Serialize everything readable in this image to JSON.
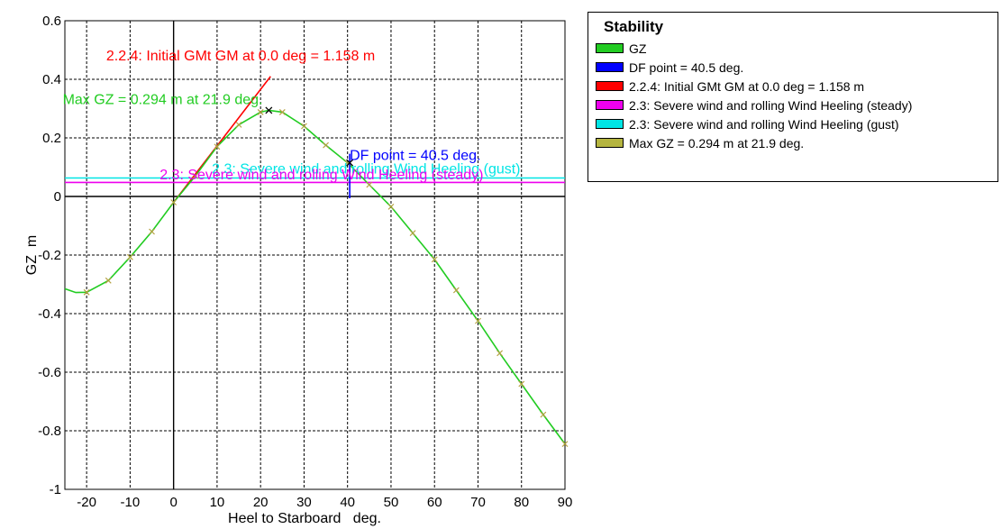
{
  "chart_data": {
    "type": "line",
    "xlabel": "Heel to Starboard   deg.",
    "ylabel": "GZ  m",
    "xlim": [
      -25,
      90
    ],
    "ylim": [
      -1,
      0.6
    ],
    "grid": true,
    "legend_position": "top-right",
    "x_ticks": [
      "-20",
      "-10",
      "0",
      "10",
      "20",
      "30",
      "40",
      "50",
      "60",
      "70",
      "80",
      "90"
    ],
    "y_ticks": [
      "0.6",
      "0.4",
      "0.2",
      "0",
      "-0.2",
      "-0.4",
      "-0.6",
      "-0.8",
      "-1"
    ],
    "series": [
      {
        "name": "GZ",
        "color": "#22cc22",
        "points": [
          [
            -25,
            -0.315
          ],
          [
            -22.5,
            -0.328
          ],
          [
            -20,
            -0.327
          ],
          [
            -15,
            -0.287
          ],
          [
            -10,
            -0.207
          ],
          [
            -5,
            -0.12
          ],
          [
            0,
            -0.02
          ],
          [
            5,
            0.07
          ],
          [
            10,
            0.17
          ],
          [
            15,
            0.245
          ],
          [
            20,
            0.288
          ],
          [
            21.9,
            0.294
          ],
          [
            25,
            0.288
          ],
          [
            30,
            0.24
          ],
          [
            35,
            0.175
          ],
          [
            40,
            0.115
          ],
          [
            45,
            0.04
          ],
          [
            50,
            -0.035
          ],
          [
            55,
            -0.125
          ],
          [
            60,
            -0.215
          ],
          [
            65,
            -0.32
          ],
          [
            70,
            -0.425
          ],
          [
            75,
            -0.535
          ],
          [
            80,
            -0.64
          ],
          [
            85,
            -0.745
          ],
          [
            90,
            -0.845
          ]
        ],
        "markers_x": [
          -20,
          -15,
          -10,
          -5,
          0,
          5,
          10,
          15,
          20,
          25,
          30,
          35,
          40,
          45,
          50,
          55,
          60,
          65,
          70,
          75,
          80,
          85,
          90
        ]
      },
      {
        "name": "2.2.4: Initial GMt GM at 0.0 deg = 1.158 m",
        "color": "#ff0000",
        "points": [
          [
            0,
            -0.02
          ],
          [
            22.3,
            0.41
          ]
        ]
      },
      {
        "name": "2.3: Severe wind and rolling Wind Heeling (gust)",
        "color": "#00e5e5",
        "points": [
          [
            -25,
            0.063
          ],
          [
            90,
            0.063
          ]
        ]
      },
      {
        "name": "2.3: Severe wind and rolling Wind Heeling (steady)",
        "color": "#ee00ee",
        "points": [
          [
            -25,
            0.048
          ],
          [
            90,
            0.048
          ]
        ]
      }
    ],
    "df_point": {
      "x": 40.5,
      "y": 0.115,
      "color": "#0000ff"
    },
    "max_gz": {
      "x": 21.9,
      "y": 0.294
    },
    "annotations": [
      {
        "text": "2.2.4: Initial GMt GM at 0.0 deg = 1.158 m",
        "x": -15.5,
        "y": 0.465,
        "color": "#ff0000"
      },
      {
        "text": "Max GZ = 0.294 m at 21.9 deg.",
        "x": -25.5,
        "y": 0.315,
        "color": "#22cc22"
      },
      {
        "text": "DF point = 40.5 deg.",
        "x": 40.5,
        "y": 0.125,
        "color": "#0000ff"
      },
      {
        "text": "2.3: Severe wind and rolling Wind Heeling (gust)",
        "x": 8.8,
        "y": 0.078,
        "color": "#00e5e5"
      },
      {
        "text": "2.3: Severe wind and rolling Wind Heeling (steady)",
        "x": -3.2,
        "y": 0.058,
        "color": "#ee00ee"
      }
    ]
  },
  "legend": {
    "title": "Stability",
    "items": [
      {
        "label": "GZ",
        "color": "#22cc22"
      },
      {
        "label": "DF point = 40.5 deg.",
        "color": "#0000ff"
      },
      {
        "label": "2.2.4: Initial GMt GM at 0.0 deg = 1.158 m",
        "color": "#ff0000"
      },
      {
        "label": "2.3: Severe wind and rolling Wind Heeling (steady)",
        "color": "#ee00ee"
      },
      {
        "label": "2.3: Severe wind and rolling Wind Heeling (gust)",
        "color": "#00e5e5"
      },
      {
        "label": "Max GZ = 0.294 m at 21.9 deg.",
        "color": "#b5b540"
      }
    ]
  }
}
